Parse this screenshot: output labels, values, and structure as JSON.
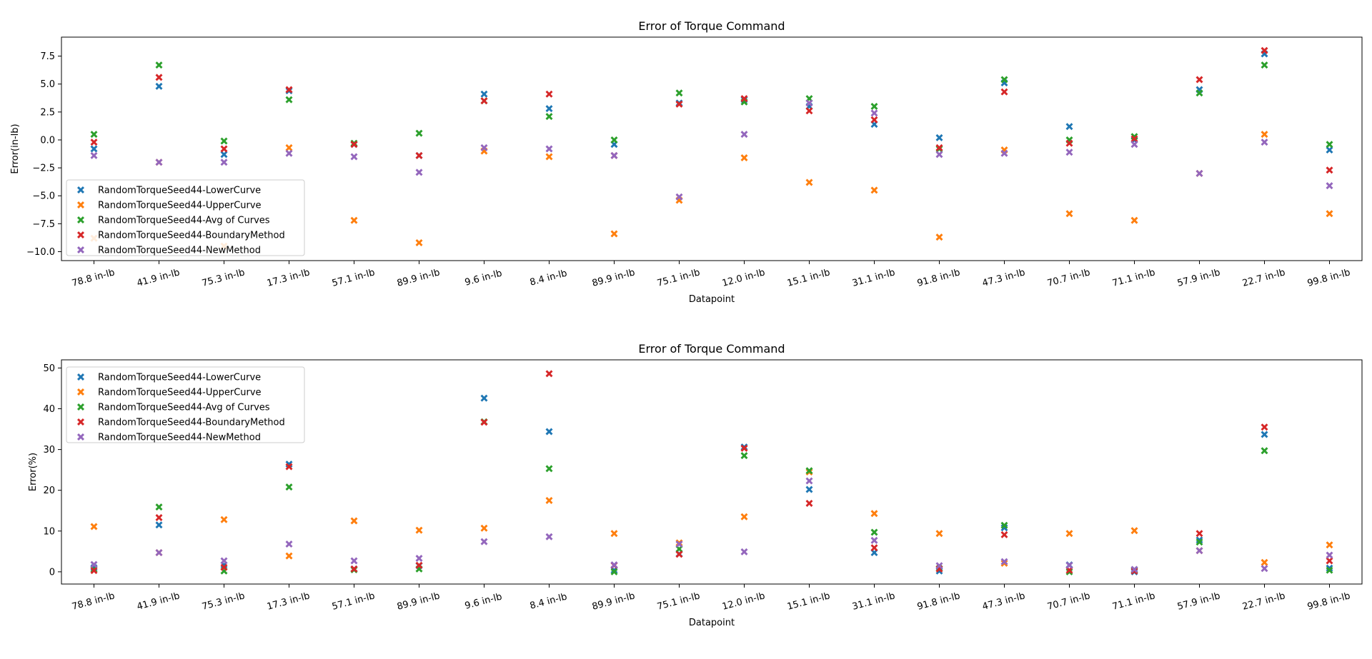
{
  "chart_data": [
    {
      "type": "scatter",
      "title": "Error of Torque Command",
      "xlabel": "Datapoint",
      "ylabel": "Error(in-lb)",
      "ylim": [
        -10.8,
        9.2
      ],
      "yticks": [
        -10.0,
        -7.5,
        -5.0,
        -2.5,
        0.0,
        2.5,
        5.0,
        7.5
      ],
      "ytick_labels": [
        "−10.0",
        "−7.5",
        "−5.0",
        "−2.5",
        "0.0",
        "2.5",
        "5.0",
        "7.5"
      ],
      "grid": false,
      "legend_position": "lower-left",
      "categories": [
        "78.8 in-lb",
        "41.9 in-lb",
        "75.3 in-lb",
        "17.3 in-lb",
        "57.1 in-lb",
        "89.9 in-lb",
        "9.6 in-lb",
        "8.4 in-lb",
        "89.9 in-lb",
        "75.1 in-lb",
        "12.0 in-lb",
        "15.1 in-lb",
        "31.1 in-lb",
        "91.8 in-lb",
        "47.3 in-lb",
        "70.7 in-lb",
        "71.1 in-lb",
        "57.9 in-lb",
        "22.7 in-lb",
        "99.8 in-lb"
      ],
      "series": [
        {
          "name": "RandomTorqueSeed44-LowerCurve",
          "color": "#1f77b4",
          "values": [
            -0.8,
            4.8,
            -1.3,
            4.4,
            -0.4,
            -1.4,
            4.1,
            2.8,
            -0.4,
            3.3,
            3.6,
            3.0,
            1.4,
            0.2,
            5.1,
            1.2,
            0.0,
            4.5,
            7.7,
            -0.9
          ]
        },
        {
          "name": "RandomTorqueSeed44-UpperCurve",
          "color": "#ff7f0e",
          "values": [
            -8.8,
            -2.0,
            -9.5,
            -0.7,
            -7.2,
            -9.2,
            -1.0,
            -1.5,
            -8.4,
            -5.4,
            -1.6,
            -3.8,
            -4.5,
            -8.7,
            -0.9,
            -6.6,
            -7.2,
            -3.0,
            0.5,
            -6.6
          ]
        },
        {
          "name": "RandomTorqueSeed44-Avg of Curves",
          "color": "#2ca02c",
          "values": [
            0.5,
            6.7,
            -0.1,
            3.6,
            -0.3,
            0.6,
            3.5,
            2.1,
            0.0,
            4.2,
            3.4,
            3.7,
            3.0,
            -0.8,
            5.4,
            0.0,
            0.3,
            4.2,
            6.7,
            -0.4
          ]
        },
        {
          "name": "RandomTorqueSeed44-BoundaryMethod",
          "color": "#d62728",
          "values": [
            -0.2,
            5.6,
            -0.8,
            4.5,
            -0.4,
            -1.4,
            3.5,
            4.1,
            -1.4,
            3.2,
            3.7,
            2.6,
            1.8,
            -0.7,
            4.3,
            -0.3,
            0.1,
            5.4,
            8.0,
            -2.7
          ]
        },
        {
          "name": "RandomTorqueSeed44-NewMethod",
          "color": "#9467bd",
          "values": [
            -1.4,
            -2.0,
            -2.0,
            -1.2,
            -1.5,
            -2.9,
            -0.7,
            -0.8,
            -1.4,
            -5.1,
            0.5,
            3.3,
            2.4,
            -1.3,
            -1.2,
            -1.1,
            -0.4,
            -3.0,
            -0.2,
            -4.1
          ]
        }
      ]
    },
    {
      "type": "scatter",
      "title": "Error of Torque Command",
      "xlabel": "Datapoint",
      "ylabel": "Error(%)",
      "ylim": [
        -3,
        52
      ],
      "yticks": [
        0,
        10,
        20,
        30,
        40,
        50
      ],
      "ytick_labels": [
        "0",
        "10",
        "20",
        "30",
        "40",
        "50"
      ],
      "grid": false,
      "legend_position": "upper-left",
      "categories": [
        "78.8 in-lb",
        "41.9 in-lb",
        "75.3 in-lb",
        "17.3 in-lb",
        "57.1 in-lb",
        "89.9 in-lb",
        "9.6 in-lb",
        "8.4 in-lb",
        "89.9 in-lb",
        "75.1 in-lb",
        "12.0 in-lb",
        "15.1 in-lb",
        "31.1 in-lb",
        "91.8 in-lb",
        "47.3 in-lb",
        "70.7 in-lb",
        "71.1 in-lb",
        "57.9 in-lb",
        "22.7 in-lb",
        "99.8 in-lb"
      ],
      "series": [
        {
          "name": "RandomTorqueSeed44-LowerCurve",
          "color": "#1f77b4",
          "values": [
            1.0,
            11.5,
            1.7,
            26.4,
            0.7,
            1.5,
            42.6,
            34.4,
            0.4,
            4.4,
            30.6,
            20.2,
            4.7,
            0.2,
            10.8,
            1.7,
            0.0,
            7.8,
            33.7,
            0.9
          ]
        },
        {
          "name": "RandomTorqueSeed44-UpperCurve",
          "color": "#ff7f0e",
          "values": [
            11.1,
            4.7,
            12.8,
            3.9,
            12.5,
            10.2,
            10.7,
            17.5,
            9.4,
            7.1,
            13.5,
            24.5,
            14.3,
            9.4,
            2.1,
            9.4,
            10.1,
            5.2,
            2.3,
            6.6
          ]
        },
        {
          "name": "RandomTorqueSeed44-Avg of Curves",
          "color": "#2ca02c",
          "values": [
            0.6,
            15.9,
            0.2,
            20.8,
            0.5,
            0.7,
            36.8,
            25.3,
            0.0,
            5.6,
            28.5,
            24.8,
            9.7,
            0.8,
            11.4,
            0.0,
            0.4,
            7.3,
            29.7,
            0.4
          ]
        },
        {
          "name": "RandomTorqueSeed44-BoundaryMethod",
          "color": "#d62728",
          "values": [
            0.3,
            13.3,
            1.1,
            25.8,
            0.7,
            1.6,
            36.7,
            48.6,
            1.6,
            4.3,
            30.3,
            16.8,
            5.9,
            0.7,
            9.1,
            0.4,
            0.2,
            9.4,
            35.5,
            2.7
          ]
        },
        {
          "name": "RandomTorqueSeed44-NewMethod",
          "color": "#9467bd",
          "values": [
            1.8,
            4.7,
            2.7,
            6.8,
            2.7,
            3.3,
            7.4,
            8.6,
            1.7,
            6.8,
            4.9,
            22.3,
            7.7,
            1.5,
            2.5,
            1.6,
            0.6,
            5.2,
            0.8,
            4.1
          ]
        }
      ]
    }
  ]
}
